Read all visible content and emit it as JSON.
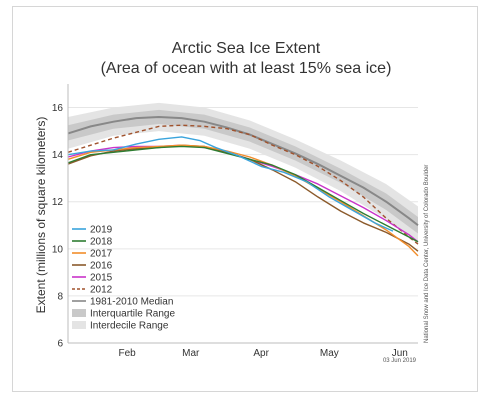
{
  "chart_data": {
    "type": "line",
    "title": "Arctic Sea Ice Extent",
    "subtitle": "(Area of ocean with at least 15% sea ice)",
    "ylabel": "Extent (millions of square kilometers)",
    "xlabel": "",
    "ylim": [
      6,
      17
    ],
    "yticks": [
      "6",
      "8",
      "10",
      "12",
      "14",
      "16"
    ],
    "x_domain": [
      20,
      174
    ],
    "x_ticks": [
      {
        "label": "Feb",
        "day": 46
      },
      {
        "label": "Mar",
        "day": 74
      },
      {
        "label": "Apr",
        "day": 105
      },
      {
        "label": "May",
        "day": 135
      },
      {
        "label": "Jun",
        "day": 166
      }
    ],
    "grid": true,
    "legend_position": "bottom-left",
    "credit": "National Snow and Ice Data Center, University of Colorado Boulder",
    "date_stamp": "03 Jun 2019",
    "median": {
      "name": "1981-2010 Median",
      "color": "#888888",
      "x": [
        20,
        30,
        40,
        50,
        60,
        70,
        80,
        90,
        100,
        110,
        120,
        130,
        140,
        150,
        160,
        170,
        174
      ],
      "y": [
        14.9,
        15.2,
        15.4,
        15.55,
        15.6,
        15.55,
        15.4,
        15.15,
        14.85,
        14.45,
        14.05,
        13.6,
        13.1,
        12.6,
        12.0,
        11.3,
        11.0
      ]
    },
    "interquartile": {
      "name": "Interquartile Range",
      "color": "#c9c9c9",
      "x": [
        20,
        40,
        60,
        80,
        100,
        120,
        140,
        160,
        174
      ],
      "low": [
        14.6,
        15.1,
        15.3,
        15.1,
        14.55,
        13.75,
        12.8,
        11.65,
        10.65
      ],
      "high": [
        15.25,
        15.7,
        15.9,
        15.7,
        15.15,
        14.35,
        13.4,
        12.35,
        11.35
      ]
    },
    "interdecile": {
      "name": "Interdecile Range",
      "color": "#e4e4e4",
      "x": [
        20,
        40,
        60,
        80,
        100,
        120,
        140,
        160,
        174
      ],
      "low": [
        14.25,
        14.8,
        15.0,
        14.8,
        14.25,
        13.45,
        12.45,
        11.25,
        10.2
      ],
      "high": [
        15.6,
        16.0,
        16.2,
        16.0,
        15.45,
        14.65,
        13.75,
        12.75,
        11.8
      ]
    },
    "series": [
      {
        "name": "2019",
        "color": "#3aa4dc",
        "dash": false,
        "x": [
          20,
          30,
          40,
          50,
          60,
          70,
          78,
          85,
          95,
          105,
          115,
          125,
          135,
          145,
          155,
          163
        ],
        "y": [
          14.0,
          14.15,
          14.2,
          14.45,
          14.65,
          14.75,
          14.6,
          14.3,
          13.95,
          13.5,
          13.25,
          12.85,
          12.2,
          11.65,
          11.1,
          10.75
        ]
      },
      {
        "name": "2018",
        "color": "#2e7d32",
        "dash": false,
        "x": [
          20,
          30,
          40,
          50,
          60,
          70,
          80,
          90,
          100,
          110,
          120,
          130,
          140,
          150,
          160,
          170,
          174
        ],
        "y": [
          13.65,
          14.0,
          14.1,
          14.2,
          14.3,
          14.35,
          14.3,
          14.05,
          13.8,
          13.55,
          13.15,
          12.6,
          12.05,
          11.5,
          11.0,
          10.5,
          10.3
        ]
      },
      {
        "name": "2017",
        "color": "#f28e2b",
        "dash": false,
        "x": [
          20,
          30,
          40,
          50,
          60,
          70,
          80,
          90,
          100,
          110,
          120,
          130,
          140,
          150,
          160,
          170,
          174
        ],
        "y": [
          13.8,
          14.1,
          14.2,
          14.3,
          14.35,
          14.4,
          14.35,
          14.15,
          13.9,
          13.55,
          13.1,
          12.55,
          12.0,
          11.4,
          10.8,
          10.1,
          9.7
        ]
      },
      {
        "name": "2016",
        "color": "#8b5a2b",
        "dash": false,
        "x": [
          20,
          30,
          40,
          50,
          60,
          70,
          80,
          90,
          100,
          110,
          120,
          130,
          140,
          150,
          160,
          170,
          174
        ],
        "y": [
          13.6,
          13.95,
          14.15,
          14.25,
          14.3,
          14.4,
          14.35,
          14.1,
          13.8,
          13.35,
          12.85,
          12.2,
          11.6,
          11.1,
          10.7,
          10.2,
          9.9
        ]
      },
      {
        "name": "2015",
        "color": "#c933c9",
        "dash": false,
        "x": [
          20,
          30,
          40,
          50,
          60,
          70,
          80,
          90,
          100,
          110,
          120,
          130,
          140,
          150,
          160,
          170,
          174
        ],
        "y": [
          13.9,
          14.15,
          14.3,
          14.35,
          14.35,
          14.4,
          14.3,
          14.1,
          13.8,
          13.5,
          13.15,
          12.75,
          12.25,
          11.75,
          11.2,
          10.6,
          10.3
        ]
      },
      {
        "name": "2012",
        "color": "#a0522d",
        "dash": true,
        "x": [
          20,
          30,
          40,
          50,
          60,
          70,
          80,
          90,
          100,
          110,
          120,
          130,
          140,
          150,
          160,
          170,
          174
        ],
        "y": [
          14.1,
          14.4,
          14.7,
          14.95,
          15.2,
          15.25,
          15.2,
          15.1,
          14.85,
          14.4,
          14.0,
          13.5,
          12.9,
          12.2,
          11.3,
          10.5,
          10.2
        ]
      }
    ],
    "legend": [
      {
        "label": "2019",
        "type": "line",
        "color": "#3aa4dc"
      },
      {
        "label": "2018",
        "type": "line",
        "color": "#2e7d32"
      },
      {
        "label": "2017",
        "type": "line",
        "color": "#f28e2b"
      },
      {
        "label": "2016",
        "type": "line",
        "color": "#8b5a2b"
      },
      {
        "label": "2015",
        "type": "line",
        "color": "#c933c9"
      },
      {
        "label": "2012",
        "type": "dash",
        "color": "#a0522d"
      },
      {
        "label": "1981-2010 Median",
        "type": "line",
        "color": "#888888"
      },
      {
        "label": "Interquartile Range",
        "type": "band",
        "color": "#c9c9c9"
      },
      {
        "label": "Interdecile Range",
        "type": "band",
        "color": "#e4e4e4"
      }
    ]
  }
}
